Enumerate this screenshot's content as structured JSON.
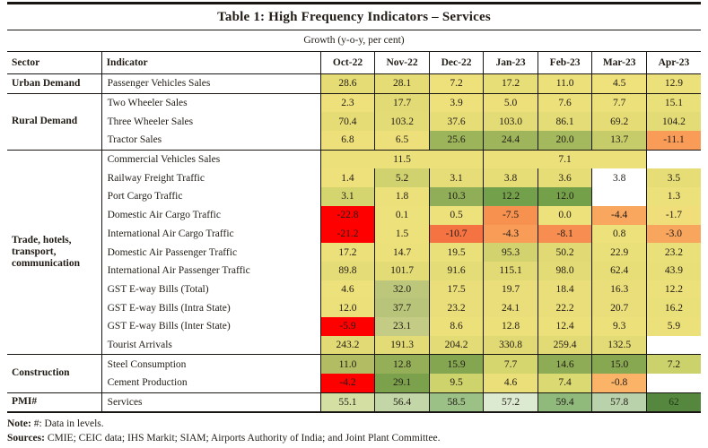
{
  "title": "Table 1: High Frequency Indicators – Services",
  "subtitle": "Growth (y-o-y, per cent)",
  "columns": [
    "Sector",
    "Indicator",
    "Oct-22",
    "Nov-22",
    "Dec-22",
    "Jan-23",
    "Feb-23",
    "Mar-23",
    "Apr-23"
  ],
  "legend_colors": {
    "high_positive_green": "#73a04a",
    "mid_yellow": "#ece07b",
    "negative_orange": "#f78d50",
    "strong_negative_red": "#ff0000",
    "empty_white": "#ffffff",
    "pmi_dark_green": "#55873e"
  },
  "sections": [
    {
      "sector": "Urban Demand",
      "rows": [
        {
          "indicator": "Passenger Vehicles Sales",
          "cells": [
            {
              "v": "28.6",
              "bg": "#e5dc75"
            },
            {
              "v": "28.1",
              "bg": "#e5dc75"
            },
            {
              "v": "7.2",
              "bg": "#eee17c"
            },
            {
              "v": "17.2",
              "bg": "#e8de78"
            },
            {
              "v": "11.0",
              "bg": "#ece07b"
            },
            {
              "v": "4.5",
              "bg": "#efe27d"
            },
            {
              "v": "12.9",
              "bg": "#ebe07a"
            }
          ]
        }
      ]
    },
    {
      "sector": "Rural Demand",
      "rows": [
        {
          "indicator": "Two Wheeler Sales",
          "cells": [
            {
              "v": "2.3",
              "bg": "#eee17c"
            },
            {
              "v": "17.7",
              "bg": "#e2da74"
            },
            {
              "v": "3.9",
              "bg": "#eee17c"
            },
            {
              "v": "5.0",
              "bg": "#ede07b"
            },
            {
              "v": "7.6",
              "bg": "#ece07b"
            },
            {
              "v": "7.7",
              "bg": "#ece07b"
            },
            {
              "v": "15.1",
              "bg": "#eae07a"
            }
          ]
        },
        {
          "indicator": "Three Wheeler Sales",
          "cells": [
            {
              "v": "70.4",
              "bg": "#e5dc76"
            },
            {
              "v": "103.2",
              "bg": "#e3db75"
            },
            {
              "v": "37.6",
              "bg": "#e6dd77"
            },
            {
              "v": "103.0",
              "bg": "#e3db75"
            },
            {
              "v": "86.1",
              "bg": "#e4dc76"
            },
            {
              "v": "69.2",
              "bg": "#e5dc76"
            },
            {
              "v": "104.2",
              "bg": "#e3db75"
            }
          ]
        },
        {
          "indicator": "Tractor Sales",
          "cells": [
            {
              "v": "6.8",
              "bg": "#ede07b"
            },
            {
              "v": "6.5",
              "bg": "#ede07b"
            },
            {
              "v": "25.6",
              "bg": "#9cb45a"
            },
            {
              "v": "24.4",
              "bg": "#9eb55b"
            },
            {
              "v": "20.0",
              "bg": "#a4b85e"
            },
            {
              "v": "13.7",
              "bg": "#c6cc69"
            },
            {
              "v": "-11.1",
              "bg": "#f89c57"
            }
          ]
        }
      ]
    },
    {
      "sector": "Trade, hotels, transport, communication",
      "rows": [
        {
          "indicator": "Commercial Vehicles Sales",
          "cells": [
            {
              "v": "11.5",
              "bg": "#ece07b",
              "span": 3
            },
            {
              "v": "7.1",
              "bg": "#ece07b",
              "span": 3
            },
            {
              "v": "",
              "bg": "#ffffff"
            }
          ]
        },
        {
          "indicator": "Railway Freight Traffic",
          "cells": [
            {
              "v": "1.4",
              "bg": "#eee17c"
            },
            {
              "v": "5.2",
              "bg": "#cfd26e"
            },
            {
              "v": "3.1",
              "bg": "#e7dd78"
            },
            {
              "v": "3.8",
              "bg": "#e6dd77"
            },
            {
              "v": "3.6",
              "bg": "#e6dd77"
            },
            {
              "v": "3.8",
              "bg": "#ffffff"
            },
            {
              "v": "3.5",
              "bg": "#e6dd77"
            }
          ]
        },
        {
          "indicator": "Port Cargo Traffic",
          "cells": [
            {
              "v": "3.1",
              "bg": "#d5d570"
            },
            {
              "v": "1.8",
              "bg": "#ece07b"
            },
            {
              "v": "10.3",
              "bg": "#8fae57"
            },
            {
              "v": "12.2",
              "bg": "#73a04a"
            },
            {
              "v": "12.0",
              "bg": "#74a04a"
            },
            {
              "v": "",
              "bg": "#ffffff"
            },
            {
              "v": "1.3",
              "bg": "#ece07b"
            }
          ]
        },
        {
          "indicator": "Domestic Air Cargo Traffic",
          "cells": [
            {
              "v": "-22.8",
              "bg": "#ff0000"
            },
            {
              "v": "0.1",
              "bg": "#ede17b"
            },
            {
              "v": "0.5",
              "bg": "#ede17b"
            },
            {
              "v": "-7.5",
              "bg": "#f6914f"
            },
            {
              "v": "0.0",
              "bg": "#ede17b"
            },
            {
              "v": "-4.4",
              "bg": "#f9a75f"
            },
            {
              "v": "-1.7",
              "bg": "#f0de7a"
            }
          ]
        },
        {
          "indicator": "International Air Cargo Traffic",
          "cells": [
            {
              "v": "-21.2",
              "bg": "#ff0000"
            },
            {
              "v": "1.5",
              "bg": "#ede17b"
            },
            {
              "v": "-10.7",
              "bg": "#f57243"
            },
            {
              "v": "-4.3",
              "bg": "#f89c58"
            },
            {
              "v": "-8.1",
              "bg": "#f78d50"
            },
            {
              "v": "0.8",
              "bg": "#ede17b"
            },
            {
              "v": "-3.0",
              "bg": "#f8a55e"
            }
          ]
        },
        {
          "indicator": "Domestic Air Passenger Traffic",
          "cells": [
            {
              "v": "17.2",
              "bg": "#ebe07a"
            },
            {
              "v": "14.7",
              "bg": "#ece07b"
            },
            {
              "v": "19.5",
              "bg": "#eae07a"
            },
            {
              "v": "95.3",
              "bg": "#d2d36e"
            },
            {
              "v": "50.2",
              "bg": "#e1da74"
            },
            {
              "v": "22.9",
              "bg": "#eae07a"
            },
            {
              "v": "23.2",
              "bg": "#eae07a"
            }
          ]
        },
        {
          "indicator": "International Air Passenger Traffic",
          "cells": [
            {
              "v": "89.8",
              "bg": "#e4dc76"
            },
            {
              "v": "101.7",
              "bg": "#e3db75"
            },
            {
              "v": "91.6",
              "bg": "#e4dc76"
            },
            {
              "v": "115.1",
              "bg": "#e2da75"
            },
            {
              "v": "98.0",
              "bg": "#e3db75"
            },
            {
              "v": "62.4",
              "bg": "#e8de78"
            },
            {
              "v": "43.9",
              "bg": "#e9df79"
            }
          ]
        },
        {
          "indicator": "GST E-way Bills (Total)",
          "cells": [
            {
              "v": "4.6",
              "bg": "#ede17b"
            },
            {
              "v": "32.0",
              "bg": "#bcc77c"
            },
            {
              "v": "17.5",
              "bg": "#eade7a"
            },
            {
              "v": "19.7",
              "bg": "#eade7a"
            },
            {
              "v": "18.4",
              "bg": "#eade7a"
            },
            {
              "v": "16.3",
              "bg": "#eade7a"
            },
            {
              "v": "12.2",
              "bg": "#ebe07a"
            }
          ]
        },
        {
          "indicator": "GST E-way Bills (Intra State)",
          "cells": [
            {
              "v": "12.0",
              "bg": "#ebe07a"
            },
            {
              "v": "37.7",
              "bg": "#b8c47a"
            },
            {
              "v": "23.2",
              "bg": "#eade7a"
            },
            {
              "v": "24.1",
              "bg": "#e9de79"
            },
            {
              "v": "22.2",
              "bg": "#eade7a"
            },
            {
              "v": "20.7",
              "bg": "#eade7a"
            },
            {
              "v": "16.2",
              "bg": "#eae07a"
            }
          ]
        },
        {
          "indicator": "GST E-way Bills (Inter State)",
          "cells": [
            {
              "v": "-5.9",
              "bg": "#ff0000"
            },
            {
              "v": "23.1",
              "bg": "#c4cb85"
            },
            {
              "v": "8.6",
              "bg": "#ece07b"
            },
            {
              "v": "12.8",
              "bg": "#ebe07a"
            },
            {
              "v": "12.4",
              "bg": "#ebe07a"
            },
            {
              "v": "9.3",
              "bg": "#ece07b"
            },
            {
              "v": "5.9",
              "bg": "#ece07b"
            }
          ]
        },
        {
          "indicator": "Tourist Arrivals",
          "cells": [
            {
              "v": "243.2",
              "bg": "#e2da75"
            },
            {
              "v": "191.3",
              "bg": "#e3db75"
            },
            {
              "v": "204.2",
              "bg": "#e3db75"
            },
            {
              "v": "330.8",
              "bg": "#e0d974"
            },
            {
              "v": "259.4",
              "bg": "#e2da75"
            },
            {
              "v": "132.5",
              "bg": "#e3db75"
            },
            {
              "v": "",
              "bg": "#ffffff"
            }
          ]
        }
      ]
    },
    {
      "sector": "Construction",
      "rows": [
        {
          "indicator": "Steel Consumption",
          "cells": [
            {
              "v": "11.0",
              "bg": "#b2bc62"
            },
            {
              "v": "12.8",
              "bg": "#95af59"
            },
            {
              "v": "15.9",
              "bg": "#85a650"
            },
            {
              "v": "7.7",
              "bg": "#d6d66f"
            },
            {
              "v": "14.6",
              "bg": "#8eac55"
            },
            {
              "v": "15.0",
              "bg": "#87a751"
            },
            {
              "v": "7.2",
              "bg": "#ccd26b"
            }
          ]
        },
        {
          "indicator": "Cement Production",
          "cells": [
            {
              "v": "-4.2",
              "bg": "#ff0000"
            },
            {
              "v": "29.1",
              "bg": "#7ca14c"
            },
            {
              "v": "9.5",
              "bg": "#cfd36c"
            },
            {
              "v": "4.6",
              "bg": "#eadf78"
            },
            {
              "v": "7.4",
              "bg": "#dbd972"
            },
            {
              "v": "-0.8",
              "bg": "#fbb467"
            },
            {
              "v": "",
              "bg": "#ffffff"
            }
          ]
        }
      ]
    },
    {
      "sector": "PMI#",
      "rows": [
        {
          "indicator": "Services",
          "cells": [
            {
              "v": "55.1",
              "bg": "#d4e0a3"
            },
            {
              "v": "56.4",
              "bg": "#c2d6a7"
            },
            {
              "v": "58.5",
              "bg": "#9cc187"
            },
            {
              "v": "57.2",
              "bg": "#dcead2"
            },
            {
              "v": "59.4",
              "bg": "#90ba7c"
            },
            {
              "v": "57.8",
              "bg": "#b9d2ab"
            },
            {
              "v": "62",
              "bg": "#55873e",
              "fg": "#1e3a19"
            }
          ]
        }
      ]
    }
  ],
  "note": {
    "label": "Note:",
    "text": " #: Data in levels."
  },
  "sources": {
    "label": "Sources:",
    "text": " CMIE; CEIC data; IHS Markit; SIAM; Airports Authority of India; and Joint Plant Committee."
  }
}
